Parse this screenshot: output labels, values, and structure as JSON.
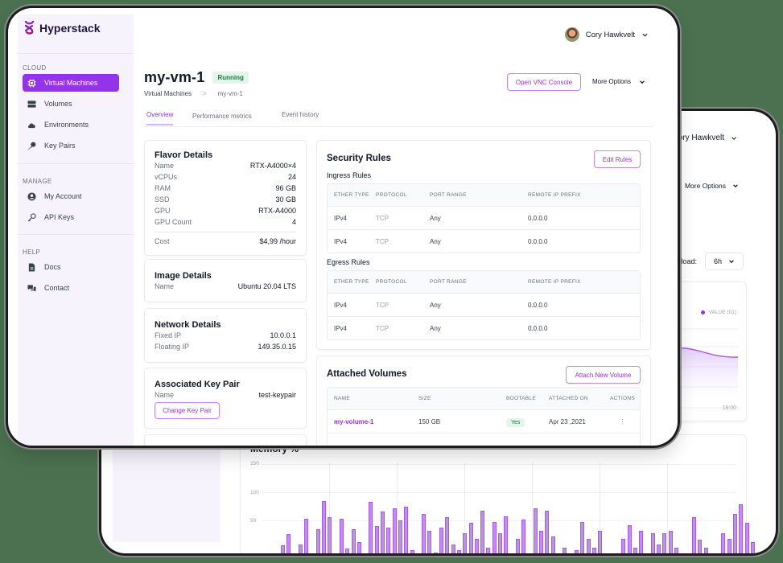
{
  "back_window": {
    "user_name": "Cory Hawkvelt",
    "more_options": "More Options",
    "overload_label": "perload:",
    "time_range": "6h",
    "line_chart": {
      "legend": "VALUE (01)",
      "x_label": "18:00"
    },
    "memory_chart": {
      "title": "Memory %",
      "y_ticks": [
        "150",
        "100",
        "50"
      ]
    }
  },
  "sidebar": {
    "brand": "Hyperstack",
    "sections": [
      {
        "label": "CLOUD",
        "items": [
          {
            "label": "Virtual Machines",
            "icon": "chip-icon",
            "active": true
          },
          {
            "label": "Volumes",
            "icon": "server-icon"
          },
          {
            "label": "Environments",
            "icon": "cloud-icon"
          },
          {
            "label": "Key Pairs",
            "icon": "key-icon"
          }
        ]
      },
      {
        "label": "MANAGE",
        "items": [
          {
            "label": "My Account",
            "icon": "user-circle-icon"
          },
          {
            "label": "API Keys",
            "icon": "key-outline-icon"
          }
        ]
      },
      {
        "label": "HELP",
        "items": [
          {
            "label": "Docs",
            "icon": "document-icon"
          },
          {
            "label": "Contact",
            "icon": "chat-icon"
          }
        ]
      }
    ]
  },
  "header": {
    "user_name": "Cory Hawkvelt",
    "title": "my-vm-1",
    "status": "Running",
    "breadcrumb": [
      "Virtual Machines",
      ">",
      "my-vm-1"
    ],
    "vnc_button": "Open VNC Console",
    "more_options": "More Options",
    "tabs": [
      "Overview",
      "Performance metrics",
      "Event history"
    ]
  },
  "flavor": {
    "title": "Flavor Details",
    "rows": [
      {
        "k": "Name",
        "v": "RTX-A4000×4"
      },
      {
        "k": "vCPUs",
        "v": "24"
      },
      {
        "k": "RAM",
        "v": "96 GB"
      },
      {
        "k": "SSD",
        "v": "30 GB"
      },
      {
        "k": "GPU",
        "v": "RTX-A4000"
      },
      {
        "k": "GPU Count",
        "v": "4"
      }
    ],
    "cost": {
      "k": "Cost",
      "v": "$4,99 /hour"
    }
  },
  "image": {
    "title": "Image Details",
    "rows": [
      {
        "k": "Name",
        "v": "Ubuntu 20.04 LTS"
      }
    ]
  },
  "network": {
    "title": "Network Details",
    "rows": [
      {
        "k": "Fixed IP",
        "v": "10.0.0.1"
      },
      {
        "k": "Floating IP",
        "v": "149.35.0.15"
      }
    ]
  },
  "keypair": {
    "title": "Associated Key Pair",
    "rows": [
      {
        "k": "Name",
        "v": "test-keypair"
      }
    ],
    "button": "Change Key Pair"
  },
  "security": {
    "title": "Security Rules",
    "edit_button": "Edit Rules",
    "columns": [
      "ETHER TYPE",
      "PROTOCOL",
      "PORT RANGE",
      "REMOTE IP PREFIX"
    ],
    "ingress": {
      "label": "Ingress Rules",
      "rows": [
        [
          "IPv4",
          "TCP",
          "Any",
          "0.0.0.0"
        ],
        [
          "IPv4",
          "TCP",
          "Any",
          "0.0.0.0"
        ]
      ]
    },
    "egress": {
      "label": "Egress Rules",
      "rows": [
        [
          "IPv4",
          "TCP",
          "Any",
          "0.0.0.0"
        ],
        [
          "IPv4",
          "TCP",
          "Any",
          "0.0.0.0"
        ]
      ]
    }
  },
  "volumes": {
    "title": "Attached Volumes",
    "attach_button": "Attach New Volume",
    "columns": [
      "NAME",
      "SIZE",
      "BOOTABLE",
      "ATTACHED ON",
      "ACTIONS"
    ],
    "rows": [
      {
        "name": "my-volume-1",
        "size": "150 GB",
        "bootable": "Yes",
        "attached_on": "Apr 23 ,2021",
        "actions": "⋮"
      }
    ]
  },
  "chart_data": {
    "type": "bar",
    "title": "Memory %",
    "xlabel": "",
    "ylabel": "",
    "ylim": [
      0,
      150
    ],
    "y_ticks": [
      50,
      100,
      150
    ],
    "grid": true,
    "values": [
      21,
      0,
      16,
      39,
      58,
      0,
      40,
      86,
      20,
      67,
      117,
      89,
      19,
      86,
      33,
      67,
      44,
      24,
      116,
      73,
      99,
      70,
      104,
      83,
      107,
      30,
      10,
      94,
      64,
      26,
      70,
      89,
      40,
      30,
      60,
      78,
      50,
      100,
      35,
      80,
      60,
      90,
      10,
      50,
      85,
      20,
      105,
      65,
      100,
      55,
      20,
      35,
      10,
      30,
      80,
      50,
      35,
      65,
      20,
      0,
      0,
      50,
      75,
      35,
      65,
      20,
      60,
      40,
      60,
      65,
      35,
      0,
      0,
      88,
      48,
      35,
      10,
      25,
      60,
      50,
      95,
      112,
      78,
      45
    ]
  }
}
